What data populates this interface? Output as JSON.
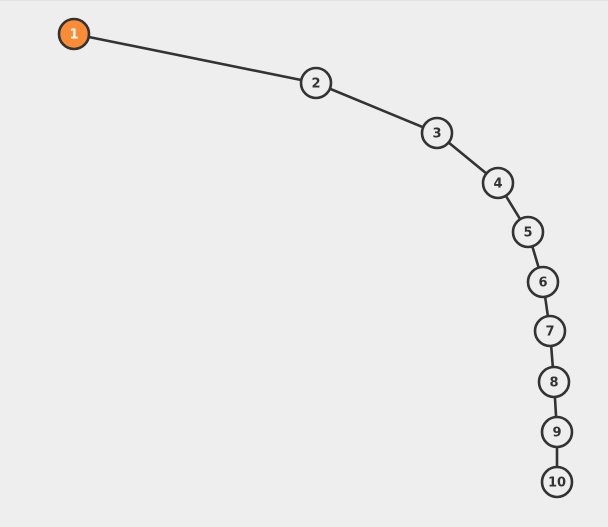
{
  "graph": {
    "colors": {
      "background": "#eeeeee",
      "edge": "#333333",
      "node_fill": "#eeeeee",
      "node_stroke": "#333333",
      "node_text": "#333333",
      "active_fill": "#fb8c35",
      "active_stroke": "#fb8c35",
      "active_text": "#ffffff"
    },
    "nodes": [
      {
        "label": "1",
        "active": true
      },
      {
        "label": "2",
        "active": false
      },
      {
        "label": "3",
        "active": false
      },
      {
        "label": "4",
        "active": false
      },
      {
        "label": "5",
        "active": false
      },
      {
        "label": "6",
        "active": false
      },
      {
        "label": "7",
        "active": false
      },
      {
        "label": "8",
        "active": false
      },
      {
        "label": "9",
        "active": false
      },
      {
        "label": "10",
        "active": false
      }
    ],
    "edges": [
      [
        "1",
        "2"
      ],
      [
        "2",
        "3"
      ],
      [
        "3",
        "4"
      ],
      [
        "4",
        "5"
      ],
      [
        "5",
        "6"
      ],
      [
        "6",
        "7"
      ],
      [
        "7",
        "8"
      ],
      [
        "8",
        "9"
      ],
      [
        "9",
        "10"
      ]
    ]
  }
}
